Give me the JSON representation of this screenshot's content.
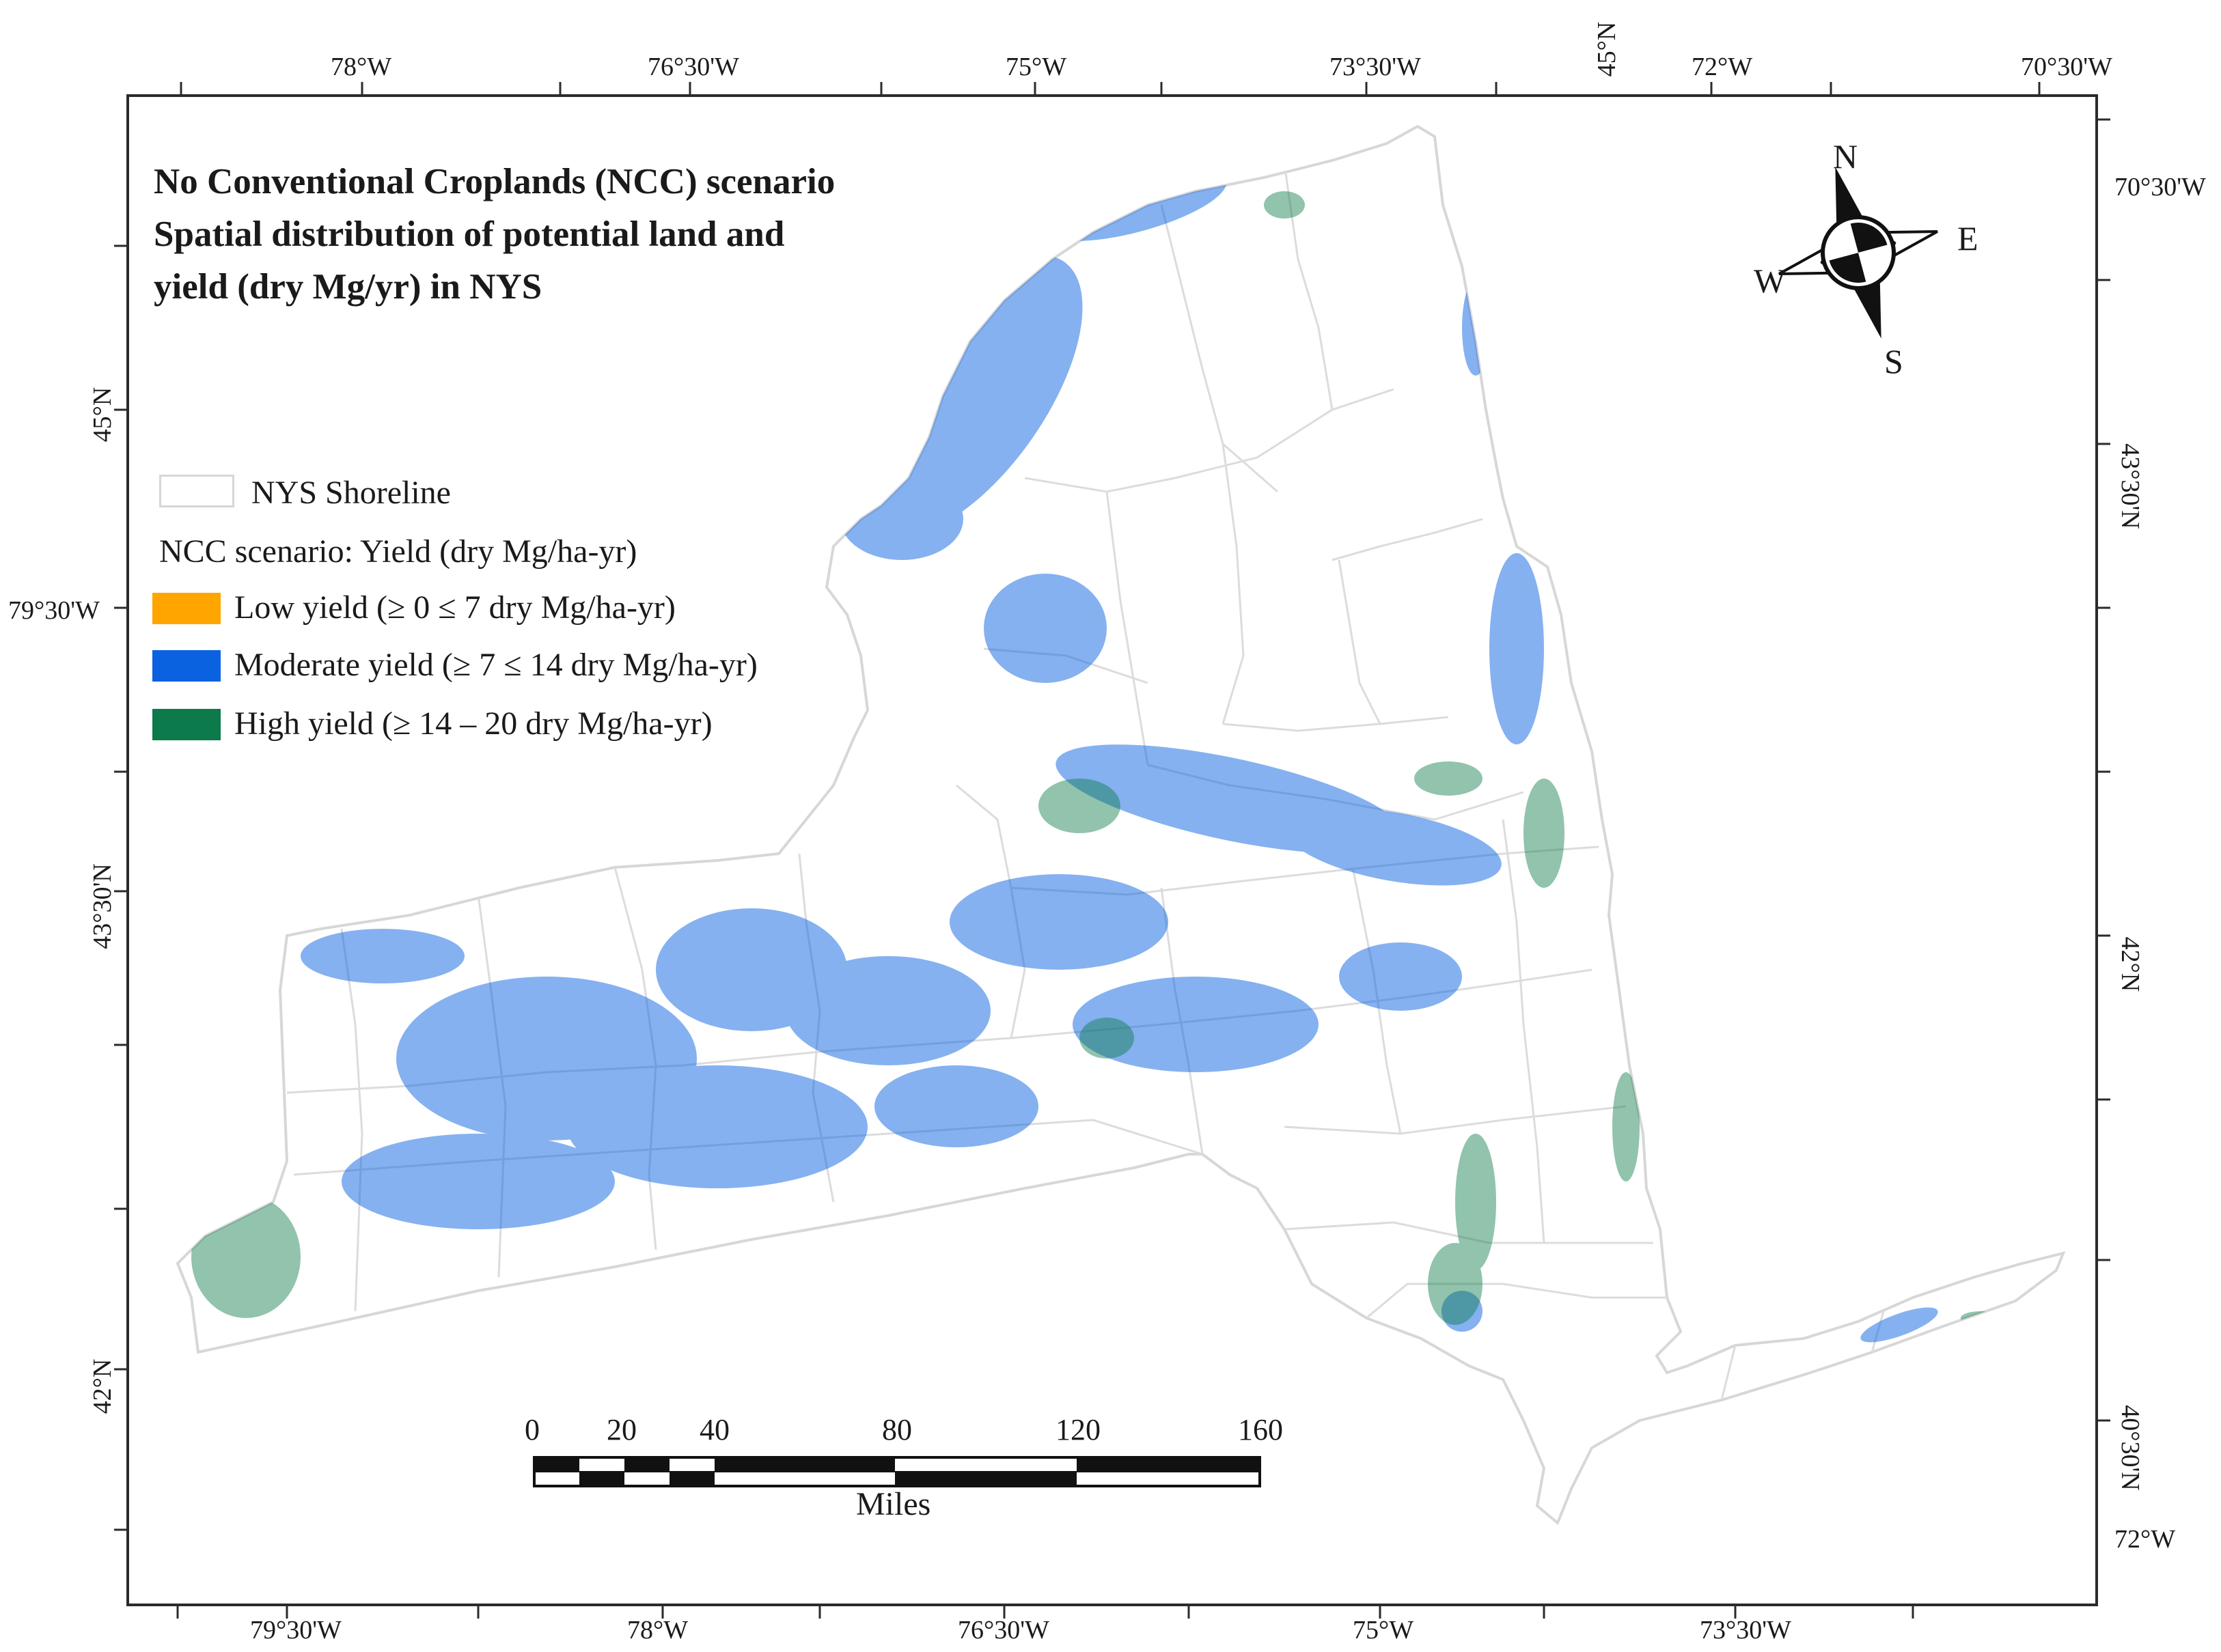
{
  "title": {
    "line1": "No Conventional Croplands (NCC) scenario",
    "line2": "Spatial distribution of potential land and",
    "line3": "yield (dry Mg/yr) in NYS"
  },
  "graticule": {
    "top": [
      "78°W",
      "76°30'W",
      "75°W",
      "73°30'W",
      "45°N",
      "72°W",
      "70°30'W"
    ],
    "bottom": [
      "79°30'W",
      "78°W",
      "76°30'W",
      "75°W",
      "73°30'W"
    ],
    "left": [
      "45°N",
      "79°30'W",
      "43°30'N",
      "42°N"
    ],
    "right": [
      "70°30'W",
      "43°30'N",
      "42°N",
      "40°30'N",
      "72°W"
    ]
  },
  "legend": {
    "shoreline_label": "NYS Shoreline",
    "heading": "NCC scenario: Yield (dry Mg/ha-yr)",
    "items": [
      {
        "label": "Low yield (≥ 0 ≤ 7 dry Mg/ha-yr)",
        "color": "#FFA500"
      },
      {
        "label": "Moderate yield (≥ 7 ≤ 14 dry Mg/ha-yr)",
        "color": "#0A62E0"
      },
      {
        "label": "High yield (≥ 14 – 20 dry Mg/ha-yr)",
        "color": "#0C7A4A"
      }
    ]
  },
  "north_arrow": {
    "n": "N",
    "s": "S",
    "e": "E",
    "w": "W"
  },
  "scale_bar": {
    "ticks": [
      "0",
      "20",
      "40",
      "80",
      "120",
      "160"
    ],
    "unit": "Miles"
  },
  "colors": {
    "shoreline": "#d7d7d7",
    "county_lines": "#dcdcdc",
    "frame": "#2b2b2b"
  }
}
